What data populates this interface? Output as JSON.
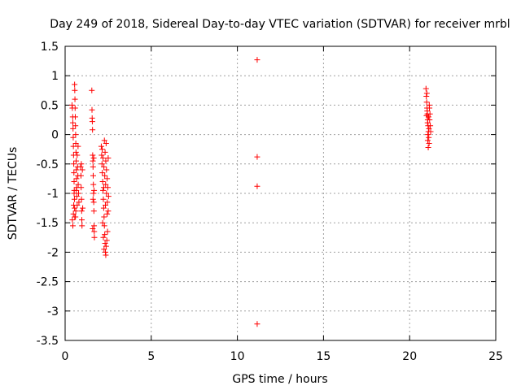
{
  "chart_data": {
    "type": "scatter",
    "title": "Day 249 of 2018, Sidereal Day-to-day VTEC variation (SDTVAR) for receiver mrbl",
    "xlabel": "GPS time / hours",
    "ylabel": "SDTVAR / TECUs",
    "xlim": [
      0,
      25
    ],
    "ylim": [
      -3.5,
      1.5
    ],
    "xticks": [
      "0",
      "5",
      "10",
      "15",
      "20",
      "25"
    ],
    "xtick_values": [
      0,
      5,
      10,
      15,
      20,
      25
    ],
    "yticks": [
      "1.5",
      "1",
      "0.5",
      "0",
      "-0.5",
      "-1",
      "-1.5",
      "-2",
      "-2.5",
      "-3",
      "-3.5"
    ],
    "ytick_values": [
      1.5,
      1,
      0.5,
      0,
      -0.5,
      -1,
      -1.5,
      -2,
      -2.5,
      -3,
      -3.5
    ],
    "grid": true,
    "marker": "+",
    "marker_color": "#ff0000",
    "series": [
      {
        "name": "SDTVAR",
        "points": [
          [
            0.4,
            0.5
          ],
          [
            0.42,
            0.45
          ],
          [
            0.44,
            0.3
          ],
          [
            0.45,
            0.2
          ],
          [
            0.46,
            0.1
          ],
          [
            0.47,
            -0.05
          ],
          [
            0.48,
            -0.2
          ],
          [
            0.49,
            -0.35
          ],
          [
            0.5,
            -0.5
          ],
          [
            0.51,
            -0.65
          ],
          [
            0.52,
            -0.8
          ],
          [
            0.53,
            -0.95
          ],
          [
            0.54,
            -1.1
          ],
          [
            0.55,
            -1.25
          ],
          [
            0.56,
            -1.4
          ],
          [
            0.42,
            -1.45
          ],
          [
            0.45,
            -1.55
          ],
          [
            0.48,
            -1.35
          ],
          [
            0.5,
            -1.2
          ],
          [
            0.52,
            -1.0
          ],
          [
            0.55,
            0.85
          ],
          [
            0.56,
            0.75
          ],
          [
            0.57,
            0.6
          ],
          [
            0.58,
            0.45
          ],
          [
            0.59,
            0.3
          ],
          [
            0.6,
            0.15
          ],
          [
            0.61,
            0.0
          ],
          [
            0.62,
            -0.15
          ],
          [
            0.63,
            -0.3
          ],
          [
            0.64,
            -0.45
          ],
          [
            0.65,
            -0.6
          ],
          [
            0.66,
            -0.75
          ],
          [
            0.67,
            -0.9
          ],
          [
            0.68,
            -1.05
          ],
          [
            0.7,
            -1.2
          ],
          [
            0.72,
            -0.55
          ],
          [
            0.74,
            -0.7
          ],
          [
            0.76,
            -0.85
          ],
          [
            0.78,
            -1.0
          ],
          [
            0.8,
            -1.15
          ],
          [
            0.6,
            -1.4
          ],
          [
            0.62,
            -1.3
          ],
          [
            0.65,
            -0.95
          ],
          [
            0.7,
            -0.35
          ],
          [
            0.75,
            -0.2
          ],
          [
            0.9,
            -0.55
          ],
          [
            0.92,
            -0.7
          ],
          [
            0.93,
            -0.9
          ],
          [
            0.95,
            -1.1
          ],
          [
            0.96,
            -1.3
          ],
          [
            0.97,
            -1.45
          ],
          [
            0.98,
            -1.55
          ],
          [
            1.0,
            -0.6
          ],
          [
            1.02,
            -1.25
          ],
          [
            0.94,
            -0.5
          ],
          [
            1.55,
            0.75
          ],
          [
            1.56,
            0.42
          ],
          [
            1.57,
            0.28
          ],
          [
            1.58,
            0.22
          ],
          [
            1.59,
            0.08
          ],
          [
            1.6,
            -0.35
          ],
          [
            1.61,
            -0.45
          ],
          [
            1.62,
            -0.55
          ],
          [
            1.63,
            -0.7
          ],
          [
            1.64,
            -0.85
          ],
          [
            1.65,
            -1.0
          ],
          [
            1.66,
            -1.15
          ],
          [
            1.67,
            -1.3
          ],
          [
            1.68,
            -1.55
          ],
          [
            1.69,
            -1.65
          ],
          [
            1.7,
            -1.75
          ],
          [
            1.62,
            -1.1
          ],
          [
            1.66,
            -0.4
          ],
          [
            1.6,
            -1.6
          ],
          [
            1.68,
            -0.95
          ],
          [
            2.1,
            -0.2
          ],
          [
            2.12,
            -0.35
          ],
          [
            2.14,
            -0.5
          ],
          [
            2.16,
            -0.65
          ],
          [
            2.18,
            -0.8
          ],
          [
            2.2,
            -0.95
          ],
          [
            2.22,
            -1.1
          ],
          [
            2.24,
            -1.25
          ],
          [
            2.26,
            -1.4
          ],
          [
            2.28,
            -1.55
          ],
          [
            2.3,
            -1.7
          ],
          [
            2.32,
            -1.85
          ],
          [
            2.34,
            -2.0
          ],
          [
            2.36,
            -2.05
          ],
          [
            2.38,
            -1.9
          ],
          [
            2.15,
            -0.25
          ],
          [
            2.2,
            -0.4
          ],
          [
            2.25,
            -0.55
          ],
          [
            2.3,
            -0.7
          ],
          [
            2.35,
            -0.85
          ],
          [
            2.4,
            -1.0
          ],
          [
            2.45,
            -1.15
          ],
          [
            2.5,
            -1.3
          ],
          [
            2.28,
            -0.1
          ],
          [
            2.32,
            -0.3
          ],
          [
            2.36,
            -0.45
          ],
          [
            2.4,
            -0.6
          ],
          [
            2.44,
            -0.75
          ],
          [
            2.48,
            -0.9
          ],
          [
            2.52,
            -1.05
          ],
          [
            2.18,
            -1.5
          ],
          [
            2.22,
            -1.75
          ],
          [
            2.26,
            -1.95
          ],
          [
            2.42,
            -1.8
          ],
          [
            2.46,
            -1.65
          ],
          [
            2.5,
            -0.4
          ],
          [
            2.38,
            -0.15
          ],
          [
            2.24,
            -0.9
          ],
          [
            2.34,
            -1.2
          ],
          [
            2.44,
            -1.35
          ],
          [
            11.15,
            1.27
          ],
          [
            11.15,
            -0.38
          ],
          [
            11.15,
            -0.88
          ],
          [
            11.15,
            -3.22
          ],
          [
            20.95,
            0.78
          ],
          [
            20.97,
            0.65
          ],
          [
            20.99,
            0.55
          ],
          [
            21.01,
            0.45
          ],
          [
            21.03,
            0.35
          ],
          [
            21.05,
            0.25
          ],
          [
            21.07,
            0.15
          ],
          [
            21.09,
            0.05
          ],
          [
            21.11,
            -0.05
          ],
          [
            21.13,
            -0.15
          ],
          [
            21.0,
            0.7
          ],
          [
            21.02,
            0.4
          ],
          [
            21.04,
            0.2
          ],
          [
            21.06,
            0.0
          ],
          [
            21.08,
            -0.22
          ],
          [
            21.1,
            0.3
          ],
          [
            21.12,
            0.1
          ],
          [
            21.14,
            0.5
          ],
          [
            21.16,
            0.25
          ],
          [
            21.18,
            0.35
          ],
          [
            21.2,
            0.15
          ],
          [
            21.22,
            0.05
          ],
          [
            21.15,
            0.45
          ],
          [
            20.98,
            0.32
          ],
          [
            21.05,
            -0.1
          ]
        ]
      }
    ]
  }
}
